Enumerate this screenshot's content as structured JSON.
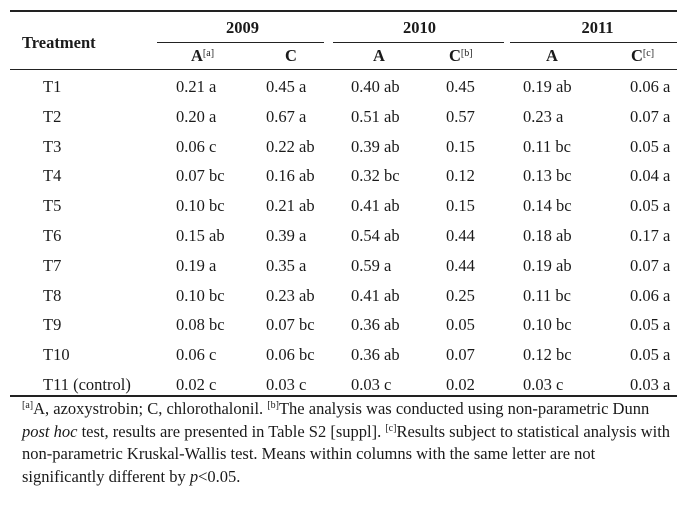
{
  "table": {
    "header": {
      "treatment_label": "Treatment",
      "years": [
        "2009",
        "2010",
        "2011"
      ],
      "subcols": [
        {
          "label": "A",
          "sup": "[a]"
        },
        {
          "label": "C",
          "sup": ""
        },
        {
          "label": "A",
          "sup": ""
        },
        {
          "label": "C",
          "sup": "[b]"
        },
        {
          "label": "A",
          "sup": ""
        },
        {
          "label": "C",
          "sup": "[c]"
        }
      ]
    },
    "rows": [
      {
        "treatment": "T1",
        "values": [
          "0.21 a",
          "0.45 a",
          "0.40 ab",
          "0.45",
          "0.19 ab",
          "0.06 a"
        ]
      },
      {
        "treatment": "T2",
        "values": [
          "0.20 a",
          "0.67 a",
          "0.51 ab",
          "0.57",
          "0.23 a",
          "0.07 a"
        ]
      },
      {
        "treatment": "T3",
        "values": [
          "0.06 c",
          "0.22 ab",
          "0.39 ab",
          "0.15",
          "0.11 bc",
          "0.05 a"
        ]
      },
      {
        "treatment": "T4",
        "values": [
          "0.07 bc",
          "0.16 ab",
          "0.32 bc",
          "0.12",
          "0.13 bc",
          "0.04 a"
        ]
      },
      {
        "treatment": "T5",
        "values": [
          "0.10 bc",
          "0.21 ab",
          "0.41 ab",
          "0.15",
          "0.14 bc",
          "0.05 a"
        ]
      },
      {
        "treatment": "T6",
        "values": [
          "0.15 ab",
          "0.39 a",
          "0.54 ab",
          "0.44",
          "0.18 ab",
          "0.17 a"
        ]
      },
      {
        "treatment": "T7",
        "values": [
          "0.19 a",
          "0.35 a",
          "0.59 a",
          "0.44",
          "0.19 ab",
          "0.07 a"
        ]
      },
      {
        "treatment": "T8",
        "values": [
          "0.10 bc",
          "0.23 ab",
          "0.41 ab",
          "0.25",
          "0.11 bc",
          "0.06 a"
        ]
      },
      {
        "treatment": "T9",
        "values": [
          "0.08 bc",
          "0.07 bc",
          "0.36 ab",
          "0.05",
          "0.10 bc",
          "0.05 a"
        ]
      },
      {
        "treatment": "T10",
        "values": [
          "0.06 c",
          "0.06 bc",
          "0.36 ab",
          "0.07",
          "0.12 bc",
          "0.05 a"
        ]
      },
      {
        "treatment": "T11 (control)",
        "values": [
          "0.02 c",
          "0.03 c",
          "0.03 c",
          "0.02",
          "0.03 c",
          "0.03 a"
        ]
      }
    ]
  },
  "footnote": {
    "a_sup": "[a]",
    "a_text": "A, azoxystrobin; C, chlorothalonil. ",
    "b_sup": "[b]",
    "b_text_1": "The analysis was conducted using non-parametric Dunn ",
    "b_italic": "post hoc",
    "b_text_2": " test, results are presented in Table S2 [suppl]. ",
    "c_sup": "[c]",
    "c_text_1": "Results subject to statistical analysis with non-parametric Kruskal-Wallis test. Means within columns with the same letter are not significantly different by ",
    "c_italic": "p",
    "c_text_2": "<0.05."
  }
}
